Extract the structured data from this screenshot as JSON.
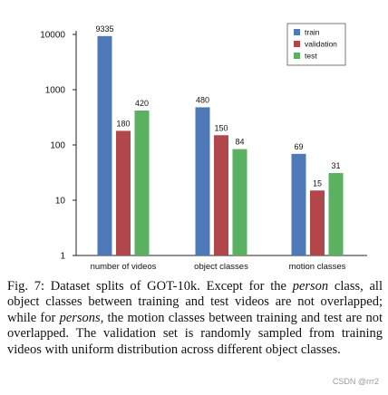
{
  "chart_data": {
    "type": "bar",
    "scale": "log",
    "ylim": [
      1,
      10000
    ],
    "yticks": [
      "1",
      "10",
      "100",
      "1000",
      "10000"
    ],
    "categories": [
      "number of videos",
      "object classes",
      "motion classes"
    ],
    "series": [
      {
        "name": "train",
        "color": "#4e79b6",
        "values": [
          9335,
          480,
          69
        ]
      },
      {
        "name": "validation",
        "color": "#b2474b",
        "values": [
          180,
          150,
          15
        ]
      },
      {
        "name": "test",
        "color": "#5ab162",
        "values": [
          420,
          84,
          31
        ]
      }
    ],
    "value_labels": [
      [
        "9335",
        "480",
        "69"
      ],
      [
        "180",
        "150",
        "15"
      ],
      [
        "420",
        "84",
        "31"
      ]
    ],
    "legend_position": "top-right",
    "grid": false
  },
  "caption": {
    "p1": "Fig. 7: Dataset splits of GOT-10k. Except for the ",
    "e1": "person",
    "p2": " class, all object classes between training and test videos are not overlapped; while for ",
    "e2": "persons",
    "p3": ", the motion classes between training and test are not overlapped. The validation set is randomly sampled from training videos with uniform distribution across different object classes."
  },
  "watermark": "CSDN @rrr2"
}
